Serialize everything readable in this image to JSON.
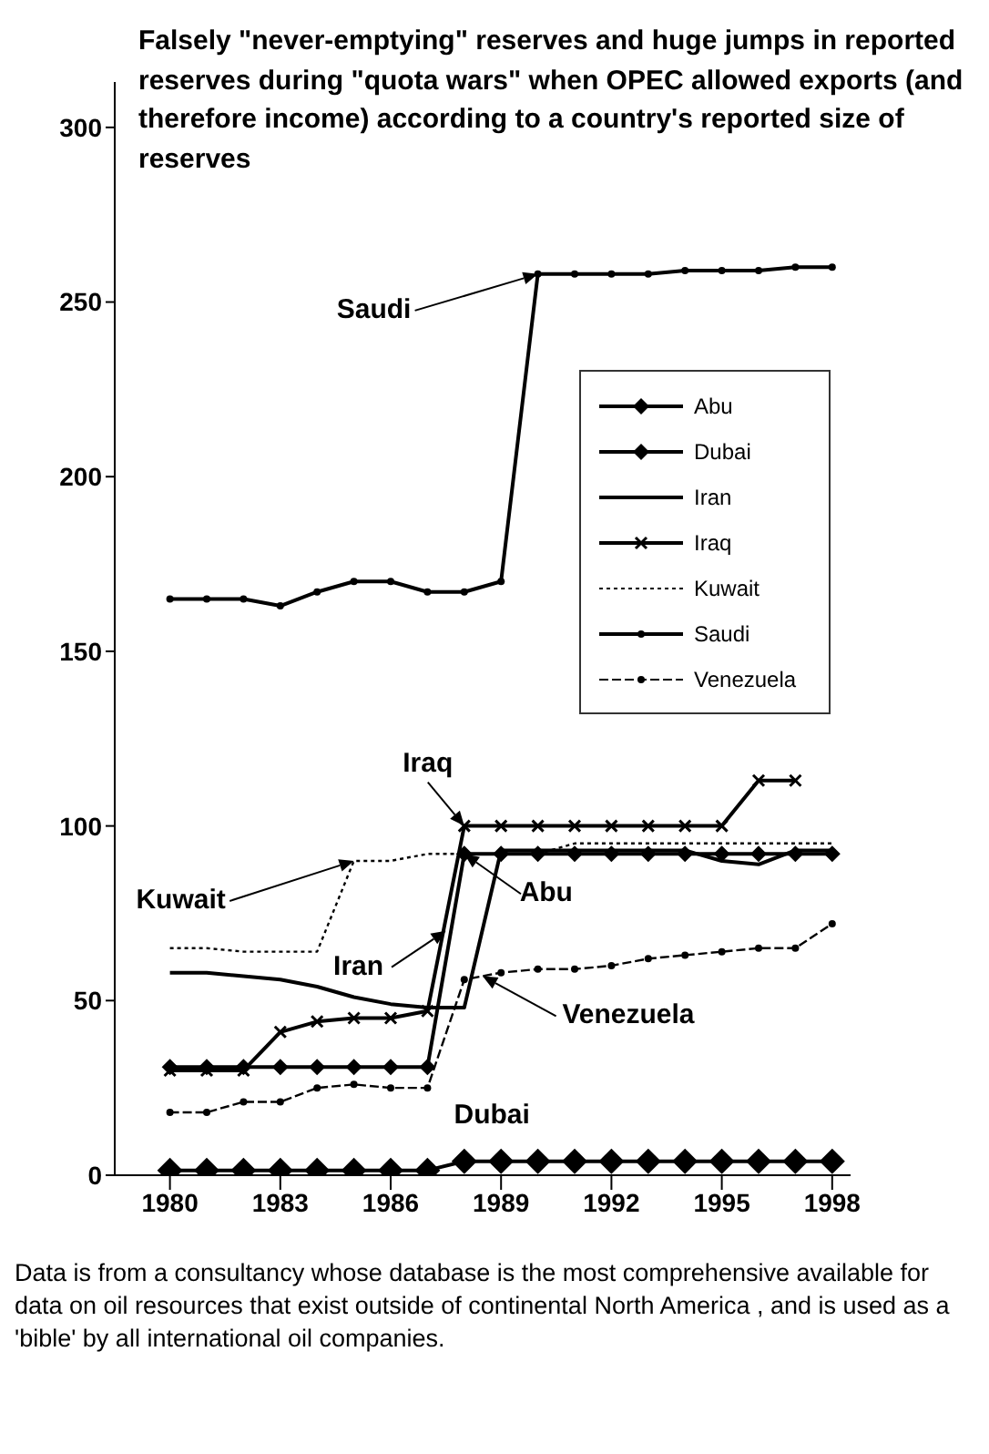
{
  "chart_data": {
    "type": "line",
    "title": "Falsely \"never-emptying\" reserves and huge jumps in reported reserves during \"quota wars\" when OPEC allowed exports (and therefore income) according to a country's reported size of reserves",
    "x": [
      1980,
      1981,
      1982,
      1983,
      1984,
      1985,
      1986,
      1987,
      1988,
      1989,
      1990,
      1991,
      1992,
      1993,
      1994,
      1995,
      1996,
      1997,
      1998
    ],
    "series": [
      {
        "name": "Abu",
        "color": "#000000",
        "marker": "diamond",
        "line_style": "solid",
        "values": [
          31,
          31,
          31,
          31,
          31,
          31,
          31,
          31,
          92,
          92,
          92,
          92,
          92,
          92,
          92,
          92,
          92,
          92,
          92
        ]
      },
      {
        "name": "Dubai",
        "color": "#000000",
        "marker": "diamond",
        "line_style": "solid",
        "values": [
          1.4,
          1.4,
          1.4,
          1.4,
          1.4,
          1.4,
          1.4,
          1.4,
          4,
          4,
          4,
          4,
          4,
          4,
          4,
          4,
          4,
          4,
          4
        ]
      },
      {
        "name": "Iran",
        "color": "#000000",
        "marker": "none",
        "line_style": "solid",
        "values": [
          58,
          58,
          57,
          56,
          54,
          51,
          49,
          48,
          48,
          93,
          93,
          93,
          93,
          93,
          93,
          90,
          89,
          93,
          93
        ]
      },
      {
        "name": "Iraq",
        "color": "#000000",
        "marker": "cross",
        "line_style": "solid",
        "values": [
          30,
          30,
          30,
          41,
          44,
          45,
          45,
          47,
          100,
          100,
          100,
          100,
          100,
          100,
          100,
          100,
          113,
          113,
          null
        ]
      },
      {
        "name": "Kuwait",
        "color": "#000000",
        "marker": "none",
        "line_style": "dotted",
        "values": [
          65,
          65,
          64,
          64,
          64,
          90,
          90,
          92,
          92,
          92,
          92,
          95,
          95,
          95,
          95,
          95,
          95,
          95,
          95
        ]
      },
      {
        "name": "Saudi",
        "color": "#000000",
        "marker": "circle",
        "line_style": "solid",
        "values": [
          165,
          165,
          165,
          163,
          167,
          170,
          170,
          167,
          167,
          170,
          258,
          258,
          258,
          258,
          259,
          259,
          259,
          260,
          260
        ]
      },
      {
        "name": "Venezuela",
        "color": "#000000",
        "marker": "circle",
        "line_style": "dashed",
        "values": [
          18,
          18,
          21,
          21,
          25,
          26,
          25,
          25,
          56,
          58,
          59,
          59,
          60,
          62,
          63,
          64,
          65,
          65,
          72
        ]
      }
    ],
    "xlim": [
      1978.5,
      1998.5
    ],
    "xticks": [
      1980,
      1983,
      1986,
      1989,
      1992,
      1995,
      1998
    ],
    "ylim": [
      0,
      313
    ],
    "yticks": [
      0,
      50,
      100,
      150,
      200,
      250,
      300
    ],
    "grid": false,
    "legend": "right",
    "annotations": [
      {
        "text": "Saudi",
        "x": 1990,
        "y": 258
      },
      {
        "text": "Iraq",
        "x": 1988,
        "y": 100
      },
      {
        "text": "Kuwait",
        "x": 1985,
        "y": 90
      },
      {
        "text": "Abu",
        "x": 1988,
        "y": 92
      },
      {
        "text": "Iran",
        "x": 1987.5,
        "y": 70
      },
      {
        "text": "Venezuela",
        "x": 1988.5,
        "y": 57
      },
      {
        "text": "Dubai",
        "x": 1989,
        "y": 4
      },
      "Data is from a consultancy whose database is the most comprehensive available for data on oil resources that exist outside of continental North America , and is used as a 'bible' by all international oil companies."
    ]
  }
}
